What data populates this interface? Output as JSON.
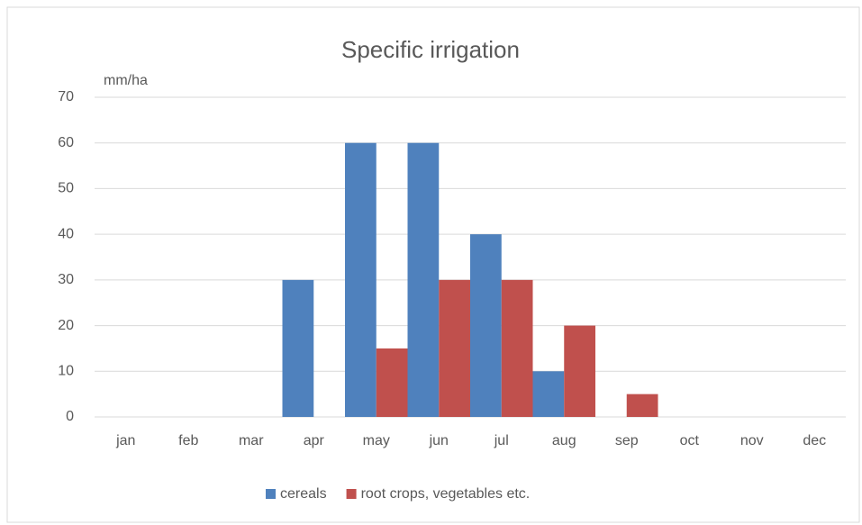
{
  "chart_data": {
    "type": "bar",
    "title": "Specific irrigation",
    "y_label": "mm/ha",
    "categories": [
      "jan",
      "feb",
      "mar",
      "apr",
      "may",
      "jun",
      "jul",
      "aug",
      "sep",
      "oct",
      "nov",
      "dec"
    ],
    "series": [
      {
        "name": "cereals",
        "color": "#4f81bd",
        "values": [
          0,
          0,
          0,
          30,
          60,
          60,
          40,
          10,
          0,
          0,
          0,
          0
        ]
      },
      {
        "name": "root crops, vegetables etc.",
        "color": "#c0504d",
        "values": [
          0,
          0,
          0,
          0,
          15,
          30,
          30,
          20,
          5,
          0,
          0,
          0
        ]
      }
    ],
    "ylim": [
      0,
      70
    ],
    "yticks": [
      0,
      10,
      20,
      30,
      40,
      50,
      60,
      70
    ],
    "grid": true,
    "legend": "bottom"
  }
}
